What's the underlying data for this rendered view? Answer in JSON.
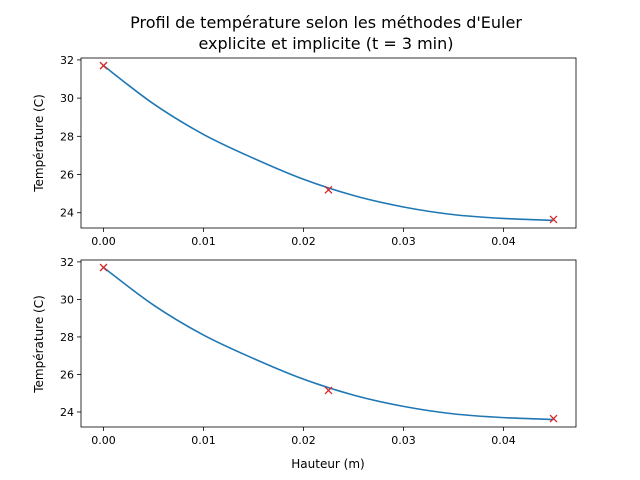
{
  "figure": {
    "title_line1": "Profil de température selon les méthodes d'Euler",
    "title_line2": "explicite et implicite (t = 3 min)"
  },
  "colors": {
    "curve": "#1f77b4",
    "markers": "#d62728",
    "axes": "#000000",
    "background": "#ffffff"
  },
  "chart_data": [
    {
      "type": "line",
      "ylabel": "Température (C)",
      "xlabel": "",
      "xlim": [
        -0.00225,
        0.04725
      ],
      "ylim": [
        23.2,
        32.1
      ],
      "xticks": [
        0.0,
        0.01,
        0.02,
        0.03,
        0.04
      ],
      "xtick_labels": [
        "0.00",
        "0.01",
        "0.02",
        "0.03",
        "0.04"
      ],
      "yticks": [
        24,
        26,
        28,
        30,
        32
      ],
      "ytick_labels": [
        "24",
        "26",
        "28",
        "30",
        "32"
      ],
      "series": [
        {
          "style": "line",
          "x": [
            0.0,
            0.005,
            0.01,
            0.015,
            0.02,
            0.025,
            0.03,
            0.035,
            0.04,
            0.045
          ],
          "y": [
            31.7,
            29.7,
            28.1,
            26.85,
            25.75,
            24.9,
            24.3,
            23.9,
            23.7,
            23.6
          ]
        },
        {
          "style": "marker-x",
          "x": [
            0.0,
            0.0225,
            0.045
          ],
          "y": [
            31.7,
            25.2,
            23.65
          ]
        }
      ]
    },
    {
      "type": "line",
      "ylabel": "Température (C)",
      "xlabel": "Hauteur (m)",
      "xlim": [
        -0.00225,
        0.04725
      ],
      "ylim": [
        23.2,
        32.1
      ],
      "xticks": [
        0.0,
        0.01,
        0.02,
        0.03,
        0.04
      ],
      "xtick_labels": [
        "0.00",
        "0.01",
        "0.02",
        "0.03",
        "0.04"
      ],
      "yticks": [
        24,
        26,
        28,
        30,
        32
      ],
      "ytick_labels": [
        "24",
        "26",
        "28",
        "30",
        "32"
      ],
      "series": [
        {
          "style": "line",
          "x": [
            0.0,
            0.005,
            0.01,
            0.015,
            0.02,
            0.025,
            0.03,
            0.035,
            0.04,
            0.045
          ],
          "y": [
            31.7,
            29.7,
            28.1,
            26.85,
            25.75,
            24.9,
            24.3,
            23.9,
            23.7,
            23.6
          ]
        },
        {
          "style": "marker-x",
          "x": [
            0.0,
            0.0225,
            0.045
          ],
          "y": [
            31.7,
            25.15,
            23.65
          ]
        }
      ]
    }
  ]
}
